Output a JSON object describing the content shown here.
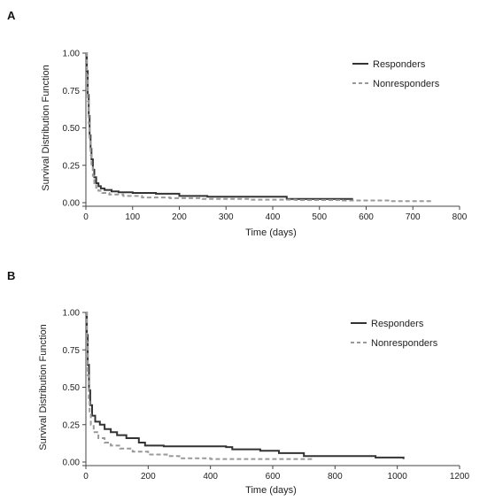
{
  "chart_data": [
    {
      "panel": "A",
      "type": "line",
      "xlabel": "Time (days)",
      "ylabel": "Survival Distribution Function",
      "xlim": [
        0,
        800
      ],
      "ylim": [
        0,
        1
      ],
      "x_ticks": [
        0,
        100,
        200,
        300,
        400,
        500,
        600,
        700,
        800
      ],
      "y_ticks": [
        "0.00",
        "0.25",
        "0.50",
        "0.75",
        "1.00"
      ],
      "legend_position": "top-right",
      "series": [
        {
          "name": "Responders",
          "style": "solid",
          "color": "#333333",
          "points": [
            [
              0,
              1.0
            ],
            [
              2,
              0.88
            ],
            [
              4,
              0.72
            ],
            [
              6,
              0.58
            ],
            [
              8,
              0.45
            ],
            [
              10,
              0.36
            ],
            [
              12,
              0.29
            ],
            [
              15,
              0.22
            ],
            [
              18,
              0.17
            ],
            [
              22,
              0.13
            ],
            [
              27,
              0.11
            ],
            [
              32,
              0.095
            ],
            [
              40,
              0.085
            ],
            [
              55,
              0.075
            ],
            [
              70,
              0.07
            ],
            [
              100,
              0.065
            ],
            [
              150,
              0.06
            ],
            [
              200,
              0.045
            ],
            [
              260,
              0.04
            ],
            [
              330,
              0.04
            ],
            [
              400,
              0.04
            ],
            [
              430,
              0.025
            ],
            [
              500,
              0.025
            ],
            [
              570,
              0.015
            ]
          ]
        },
        {
          "name": "Nonresponders",
          "style": "dashed",
          "color": "#999999",
          "points": [
            [
              0,
              1.0
            ],
            [
              2,
              0.85
            ],
            [
              4,
              0.68
            ],
            [
              6,
              0.53
            ],
            [
              8,
              0.41
            ],
            [
              10,
              0.32
            ],
            [
              12,
              0.25
            ],
            [
              15,
              0.18
            ],
            [
              18,
              0.13
            ],
            [
              22,
              0.1
            ],
            [
              27,
              0.08
            ],
            [
              35,
              0.065
            ],
            [
              50,
              0.055
            ],
            [
              80,
              0.045
            ],
            [
              120,
              0.035
            ],
            [
              180,
              0.03
            ],
            [
              250,
              0.025
            ],
            [
              350,
              0.02
            ],
            [
              450,
              0.018
            ],
            [
              550,
              0.015
            ],
            [
              650,
              0.01
            ],
            [
              740,
              0.01
            ]
          ]
        }
      ]
    },
    {
      "panel": "B",
      "type": "line",
      "xlabel": "Time (days)",
      "ylabel": "Survival Distribution Function",
      "xlim": [
        0,
        1200
      ],
      "ylim": [
        0,
        1
      ],
      "x_ticks": [
        0,
        200,
        400,
        600,
        800,
        1000,
        1200
      ],
      "y_ticks": [
        "0.00",
        "0.25",
        "0.50",
        "0.75",
        "1.00"
      ],
      "legend_position": "top-right",
      "series": [
        {
          "name": "Responders",
          "style": "solid",
          "color": "#333333",
          "points": [
            [
              0,
              1.0
            ],
            [
              3,
              0.85
            ],
            [
              6,
              0.65
            ],
            [
              10,
              0.48
            ],
            [
              14,
              0.38
            ],
            [
              20,
              0.31
            ],
            [
              30,
              0.27
            ],
            [
              45,
              0.25
            ],
            [
              60,
              0.22
            ],
            [
              80,
              0.2
            ],
            [
              100,
              0.18
            ],
            [
              130,
              0.16
            ],
            [
              170,
              0.13
            ],
            [
              190,
              0.11
            ],
            [
              250,
              0.105
            ],
            [
              350,
              0.105
            ],
            [
              450,
              0.1
            ],
            [
              470,
              0.085
            ],
            [
              560,
              0.075
            ],
            [
              620,
              0.06
            ],
            [
              700,
              0.04
            ],
            [
              800,
              0.04
            ],
            [
              930,
              0.03
            ],
            [
              1020,
              0.02
            ]
          ]
        },
        {
          "name": "Nonresponders",
          "style": "dashed",
          "color": "#999999",
          "points": [
            [
              0,
              1.0
            ],
            [
              3,
              0.8
            ],
            [
              6,
              0.58
            ],
            [
              9,
              0.42
            ],
            [
              12,
              0.32
            ],
            [
              16,
              0.25
            ],
            [
              25,
              0.2
            ],
            [
              40,
              0.16
            ],
            [
              60,
              0.13
            ],
            [
              80,
              0.11
            ],
            [
              110,
              0.09
            ],
            [
              150,
              0.07
            ],
            [
              200,
              0.05
            ],
            [
              260,
              0.04
            ],
            [
              300,
              0.025
            ],
            [
              400,
              0.02
            ],
            [
              500,
              0.02
            ],
            [
              600,
              0.02
            ],
            [
              730,
              0.02
            ]
          ]
        }
      ]
    }
  ]
}
